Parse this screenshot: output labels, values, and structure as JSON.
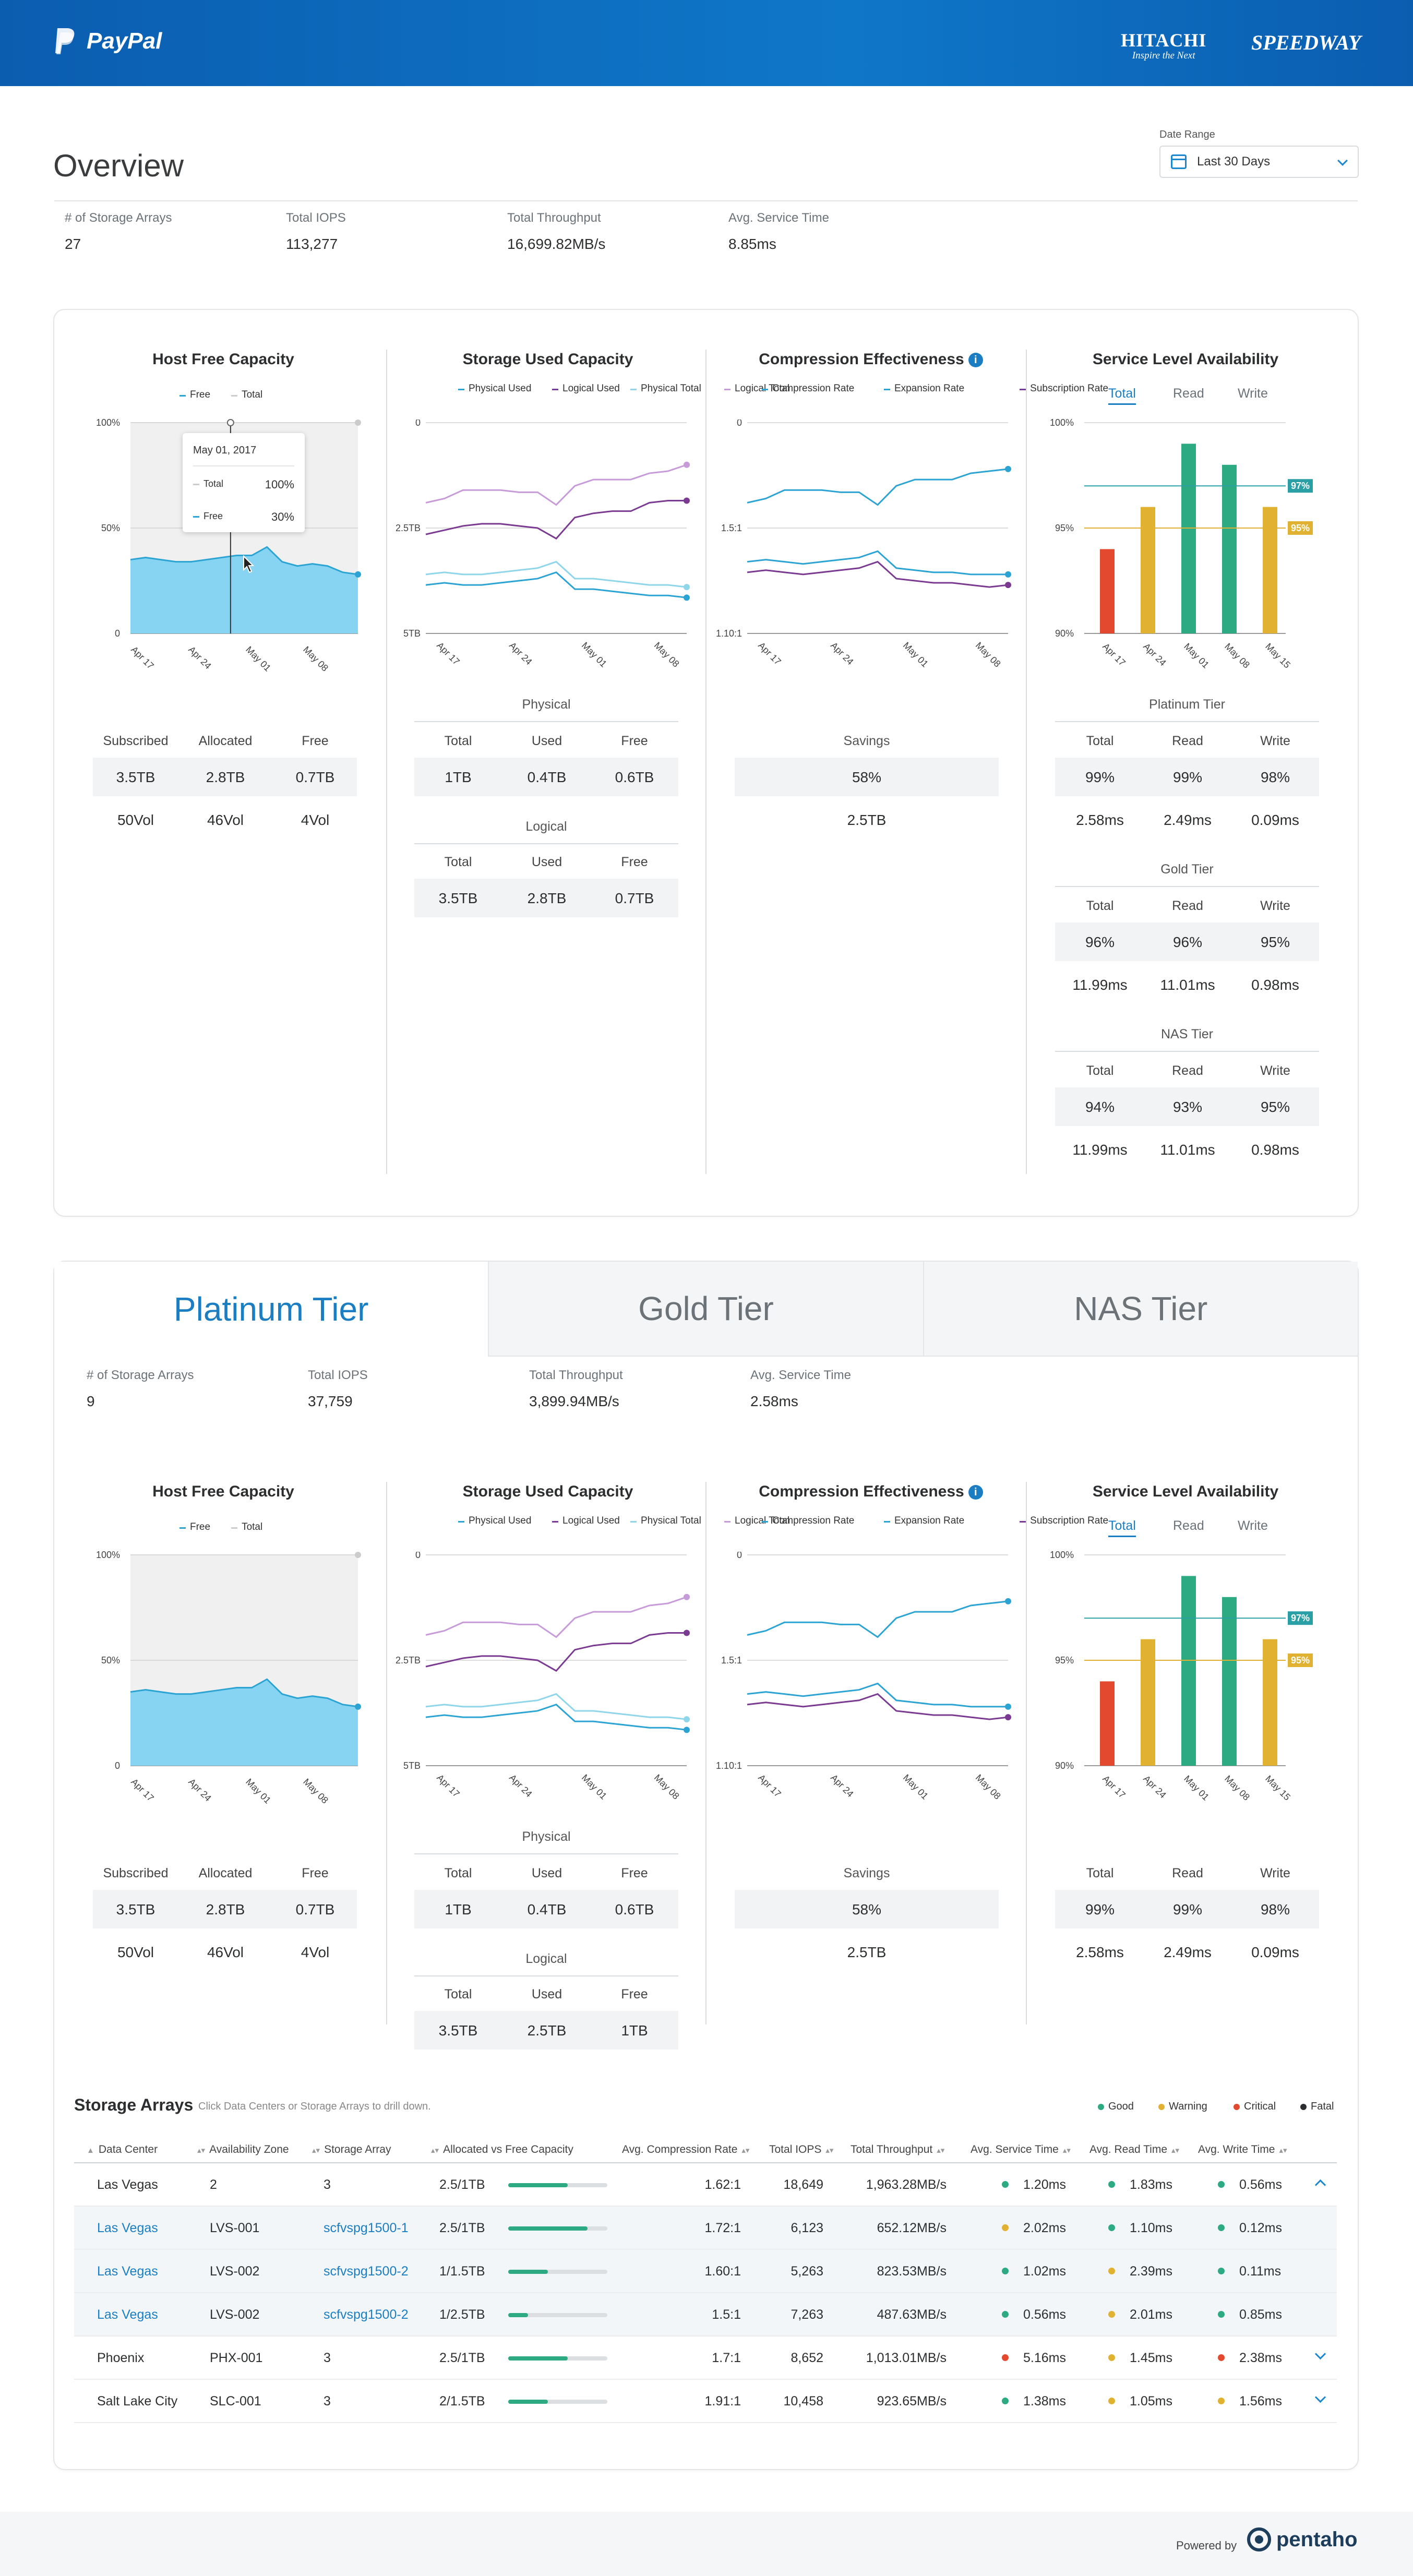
{
  "header": {
    "brand": "PayPal",
    "partner1_line1": "HITACHI",
    "partner1_line2": "Inspire the Next",
    "partner2": "SPEEDWAY"
  },
  "overview": {
    "title": "Overview",
    "date_range": {
      "label": "Date Range",
      "value": "Last 30 Days"
    },
    "kpis": [
      {
        "label": "# of Storage Arrays",
        "value": "27"
      },
      {
        "label": "Total IOPS",
        "value": "113,277"
      },
      {
        "label": "Total Throughput",
        "value": "16,699.82MB/s"
      },
      {
        "label": "Avg. Service Time",
        "value": "8.85ms"
      }
    ]
  },
  "charts": {
    "host_free": {
      "title": "Host Free Capacity",
      "legend": [
        "Free",
        "Total"
      ],
      "y_ticks": [
        "100%",
        "50%",
        "0"
      ],
      "x_ticks": [
        "Apr 17",
        "Apr 24",
        "May 01",
        "May 08"
      ],
      "tooltip": {
        "date": "May 01, 2017",
        "rows": [
          {
            "label": "Total",
            "value": "100%"
          },
          {
            "label": "Free",
            "value": "30%"
          }
        ]
      },
      "cols": [
        "Subscribed",
        "Allocated",
        "Free"
      ],
      "row1": [
        "3.5TB",
        "2.8TB",
        "0.7TB"
      ],
      "row2": [
        "50Vol",
        "46Vol",
        "4Vol"
      ]
    },
    "storage_used": {
      "title": "Storage Used Capacity",
      "legend": [
        "Physical Used",
        "Logical Used",
        "Physical Total",
        "Logical Total"
      ],
      "y_ticks": [
        "5TB",
        "2.5TB",
        "0"
      ],
      "x_ticks": [
        "Apr 17",
        "Apr 24",
        "May 01",
        "May 08"
      ],
      "physical": {
        "title": "Physical",
        "cols": [
          "Total",
          "Used",
          "Free"
        ],
        "vals": [
          "1TB",
          "0.4TB",
          "0.6TB"
        ]
      },
      "logical": {
        "title": "Logical",
        "cols": [
          "Total",
          "Used",
          "Free"
        ],
        "vals": [
          "3.5TB",
          "2.8TB",
          "0.7TB"
        ]
      }
    },
    "compression": {
      "title": "Compression Effectiveness",
      "legend": [
        "Compression Rate",
        "Expansion Rate",
        "Subscription Rate"
      ],
      "y_ticks": [
        "1.10:1",
        "1.5:1",
        "0"
      ],
      "x_ticks": [
        "Apr 17",
        "Apr 24",
        "May 01",
        "May 08"
      ],
      "savings": {
        "title": "Savings",
        "pct": "58%",
        "val": "2.5TB"
      }
    },
    "service": {
      "title": "Service Level Availability",
      "tabs": [
        "Total",
        "Read",
        "Write"
      ],
      "y_ticks": [
        "100%",
        "95%",
        "90%"
      ],
      "x_ticks": [
        "Apr 17",
        "Apr 24",
        "May 01",
        "May 08",
        "May 15"
      ],
      "ref_lines": [
        {
          "label": "97%",
          "value": 97
        },
        {
          "label": "95%",
          "value": 95
        }
      ],
      "bars": [
        {
          "label": "Apr 17",
          "value": 94,
          "color": "#e2492f"
        },
        {
          "label": "Apr 24",
          "value": 96,
          "color": "#e1b231"
        },
        {
          "label": "May 01",
          "value": 99,
          "color": "#2eaa82"
        },
        {
          "label": "May 08",
          "value": 98,
          "color": "#2eaa82"
        },
        {
          "label": "May 15",
          "value": 96,
          "color": "#e1b231"
        }
      ],
      "tiers": [
        {
          "title": "Platinum Tier",
          "cols": [
            "Total",
            "Read",
            "Write"
          ],
          "pct": [
            "99%",
            "99%",
            "98%"
          ],
          "ms": [
            "2.58ms",
            "2.49ms",
            "0.09ms"
          ]
        },
        {
          "title": "Gold Tier",
          "cols": [
            "Total",
            "Read",
            "Write"
          ],
          "pct": [
            "96%",
            "96%",
            "95%"
          ],
          "ms": [
            "11.99ms",
            "11.01ms",
            "0.98ms"
          ]
        },
        {
          "title": "NAS Tier",
          "cols": [
            "Total",
            "Read",
            "Write"
          ],
          "pct": [
            "94%",
            "93%",
            "95%"
          ],
          "ms": [
            "11.99ms",
            "11.01ms",
            "0.98ms"
          ]
        }
      ]
    }
  },
  "tier_tabs": [
    "Platinum Tier",
    "Gold Tier",
    "NAS Tier"
  ],
  "tier": {
    "kpis": [
      {
        "label": "# of Storage Arrays",
        "value": "9"
      },
      {
        "label": "Total IOPS",
        "value": "37,759"
      },
      {
        "label": "Total Throughput",
        "value": "3,899.94MB/s"
      },
      {
        "label": "Avg. Service Time",
        "value": "2.58ms"
      }
    ],
    "host_free": {
      "row1": [
        "3.5TB",
        "2.8TB",
        "0.7TB"
      ],
      "row2": [
        "50Vol",
        "46Vol",
        "4Vol"
      ]
    },
    "physical": [
      "1TB",
      "0.4TB",
      "0.6TB"
    ],
    "logical": [
      "3.5TB",
      "2.5TB",
      "1TB"
    ],
    "savings": {
      "pct": "58%",
      "val": "2.5TB"
    },
    "service": {
      "pct": [
        "99%",
        "99%",
        "98%"
      ],
      "ms": [
        "2.58ms",
        "2.49ms",
        "0.09ms"
      ]
    }
  },
  "storage_arrays": {
    "title": "Storage Arrays",
    "hint": "Click Data Centers or Storage Arrays to drill down.",
    "legend": [
      {
        "label": "Good",
        "color": "#2eaa82"
      },
      {
        "label": "Warning",
        "color": "#e1b231"
      },
      {
        "label": "Critical",
        "color": "#e2492f"
      },
      {
        "label": "Fatal",
        "color": "#2c2e2f"
      }
    ],
    "columns": [
      "Data Center",
      "Availability Zone",
      "Storage Array",
      "Allocated vs Free Capacity",
      "Avg. Compression Rate",
      "Total IOPS",
      "Total Throughput",
      "Avg. Service Time",
      "Avg. Read Time",
      "Avg. Write Time"
    ],
    "rows": [
      {
        "dc": "Las Vegas",
        "zone": "2",
        "array": "3",
        "cap": "2.5/1TB",
        "fill": 0.6,
        "comp": "1.62:1",
        "iops": "18,649",
        "thr": "1,963.28MB/s",
        "svc": "1.20ms",
        "svc_c": "#2eaa82",
        "rd": "1.83ms",
        "rd_c": "#2eaa82",
        "wr": "0.56ms",
        "wr_c": "#2eaa82",
        "sub": false,
        "exp": "up"
      },
      {
        "dc": "Las Vegas",
        "zone": "LVS-001",
        "array": "scfvspg1500-1",
        "cap": "2.5/1TB",
        "fill": 0.8,
        "comp": "1.72:1",
        "iops": "6,123",
        "thr": "652.12MB/s",
        "svc": "2.02ms",
        "svc_c": "#e1b231",
        "rd": "1.10ms",
        "rd_c": "#2eaa82",
        "wr": "0.12ms",
        "wr_c": "#2eaa82",
        "sub": true,
        "exp": ""
      },
      {
        "dc": "Las Vegas",
        "zone": "LVS-002",
        "array": "scfvspg1500-2",
        "cap": "1/1.5TB",
        "fill": 0.4,
        "comp": "1.60:1",
        "iops": "5,263",
        "thr": "823.53MB/s",
        "svc": "1.02ms",
        "svc_c": "#2eaa82",
        "rd": "2.39ms",
        "rd_c": "#e1b231",
        "wr": "0.11ms",
        "wr_c": "#2eaa82",
        "sub": true,
        "exp": ""
      },
      {
        "dc": "Las Vegas",
        "zone": "LVS-002",
        "array": "scfvspg1500-2",
        "cap": "1/2.5TB",
        "fill": 0.2,
        "comp": "1.5:1",
        "iops": "7,263",
        "thr": "487.63MB/s",
        "svc": "0.56ms",
        "svc_c": "#2eaa82",
        "rd": "2.01ms",
        "rd_c": "#e1b231",
        "wr": "0.85ms",
        "wr_c": "#2eaa82",
        "sub": true,
        "exp": ""
      },
      {
        "dc": "Phoenix",
        "zone": "PHX-001",
        "array": "3",
        "cap": "2.5/1TB",
        "fill": 0.6,
        "comp": "1.7:1",
        "iops": "8,652",
        "thr": "1,013.01MB/s",
        "svc": "5.16ms",
        "svc_c": "#e2492f",
        "rd": "1.45ms",
        "rd_c": "#e1b231",
        "wr": "2.38ms",
        "wr_c": "#e2492f",
        "sub": false,
        "exp": "down"
      },
      {
        "dc": "Salt Lake City",
        "zone": "SLC-001",
        "array": "3",
        "cap": "2/1.5TB",
        "fill": 0.4,
        "comp": "1.91:1",
        "iops": "10,458",
        "thr": "923.65MB/s",
        "svc": "1.38ms",
        "svc_c": "#2eaa82",
        "rd": "1.05ms",
        "rd_c": "#e1b231",
        "wr": "1.56ms",
        "wr_c": "#e1b231",
        "sub": false,
        "exp": "down"
      }
    ]
  },
  "footer": {
    "powered_by": "Powered by",
    "brand": "pentaho"
  }
}
